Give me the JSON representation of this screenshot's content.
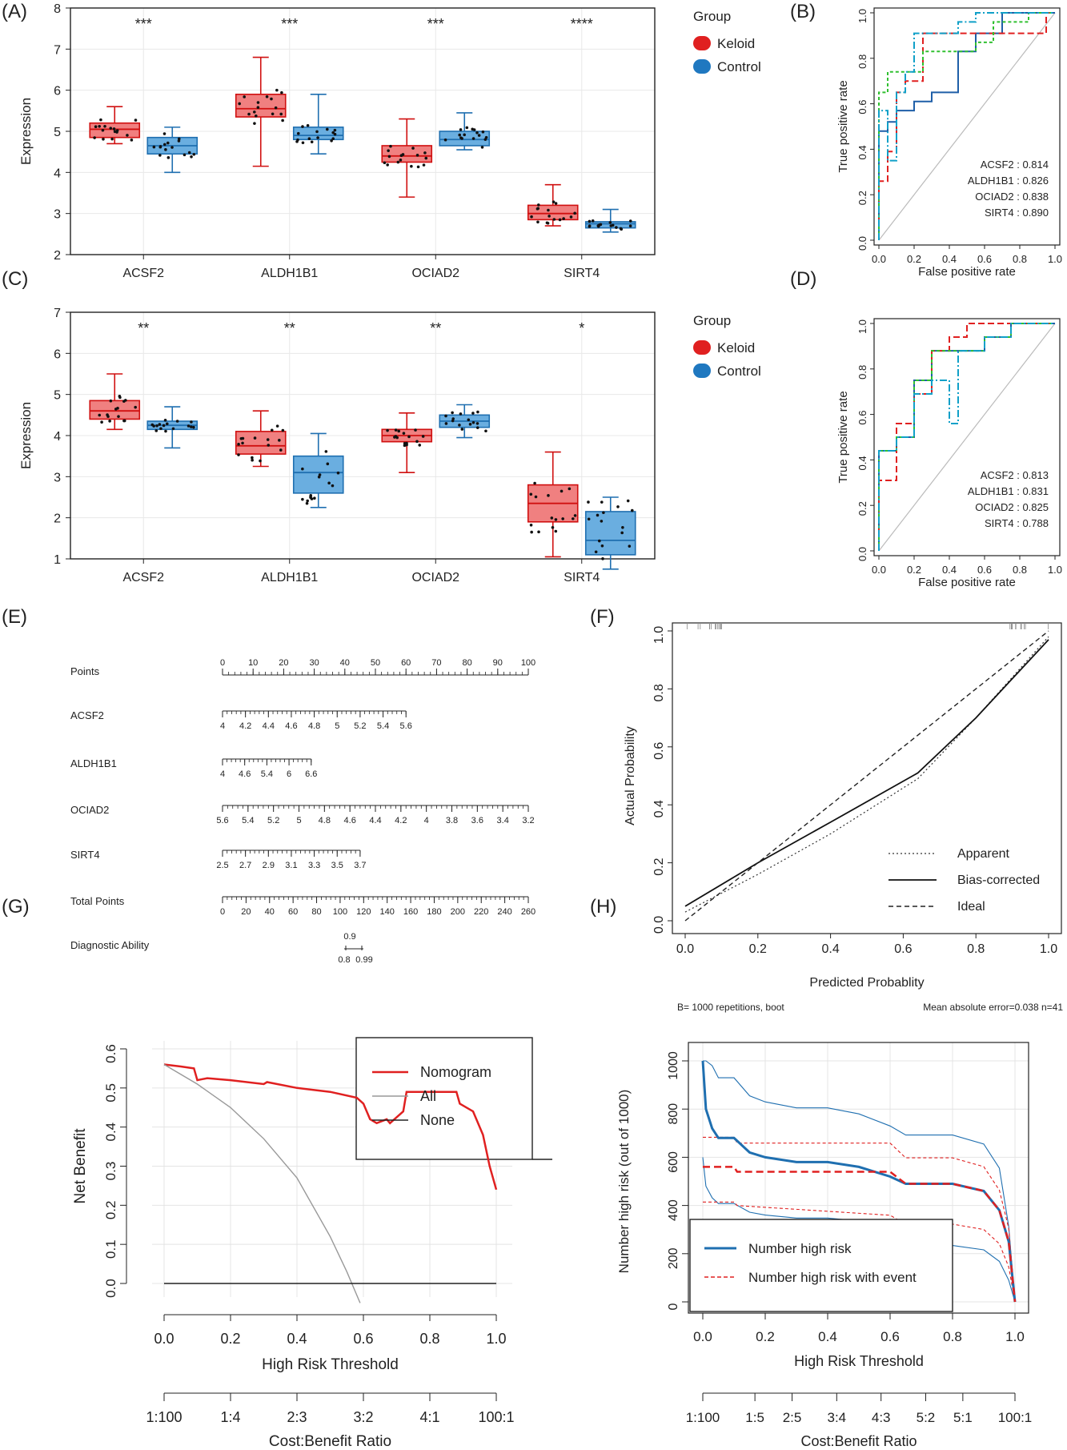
{
  "panel_labels": [
    "(A)",
    "(B)",
    "(C)",
    "(D)",
    "(E)",
    "(F)",
    "(G)",
    "(H)"
  ],
  "colors": {
    "keloid_fill": "#f08080",
    "keloid_line": "#d01010",
    "control_fill": "#6aaee0",
    "control_line": "#1f6fb0",
    "acsf2": "#1f5fa8",
    "aldh1b1": "#e02020",
    "ociad2": "#30c030",
    "sirt4": "#10a0c8"
  },
  "chart_data": [
    {
      "id": "A",
      "type": "box",
      "ylabel": "Expression",
      "ylim": [
        2,
        8
      ],
      "yticks": [
        2,
        3,
        4,
        5,
        6,
        7,
        8
      ],
      "categories": [
        "ACSF2",
        "ALDH1B1",
        "OCIAD2",
        "SIRT4"
      ],
      "significance": [
        "***",
        "***",
        "***",
        "****"
      ],
      "legend": {
        "title": "Group",
        "entries": [
          "Keloid",
          "Control"
        ]
      },
      "boxes": [
        {
          "cat": "ACSF2",
          "group": "Keloid",
          "min": 4.7,
          "q1": 4.85,
          "median": 5.05,
          "q3": 5.2,
          "max": 5.6
        },
        {
          "cat": "ACSF2",
          "group": "Control",
          "min": 4.0,
          "q1": 4.45,
          "median": 4.65,
          "q3": 4.85,
          "max": 5.1
        },
        {
          "cat": "ALDH1B1",
          "group": "Keloid",
          "min": 4.15,
          "q1": 5.35,
          "median": 5.55,
          "q3": 5.9,
          "max": 6.8
        },
        {
          "cat": "ALDH1B1",
          "group": "Control",
          "min": 4.45,
          "q1": 4.8,
          "median": 4.9,
          "q3": 5.1,
          "max": 5.9
        },
        {
          "cat": "OCIAD2",
          "group": "Keloid",
          "min": 3.4,
          "q1": 4.25,
          "median": 4.4,
          "q3": 4.65,
          "max": 5.3
        },
        {
          "cat": "OCIAD2",
          "group": "Control",
          "min": 4.55,
          "q1": 4.65,
          "median": 4.8,
          "q3": 5.0,
          "max": 5.45
        },
        {
          "cat": "SIRT4",
          "group": "Keloid",
          "min": 2.7,
          "q1": 2.85,
          "median": 3.0,
          "q3": 3.2,
          "max": 3.7
        },
        {
          "cat": "SIRT4",
          "group": "Control",
          "min": 2.55,
          "q1": 2.65,
          "median": 2.75,
          "q3": 2.8,
          "max": 3.1
        }
      ]
    },
    {
      "id": "B",
      "type": "roc",
      "xlabel": "False positive rate",
      "ylabel": "True positive rate",
      "series": [
        {
          "name": "ACSF2",
          "auc": "0.814",
          "x": [
            0,
            0,
            0.05,
            0.05,
            0.1,
            0.1,
            0.2,
            0.2,
            0.3,
            0.3,
            0.45,
            0.45,
            0.55,
            0.55,
            0.7,
            0.7,
            0.8,
            1
          ],
          "y": [
            0,
            0.48,
            0.48,
            0.52,
            0.52,
            0.57,
            0.57,
            0.61,
            0.61,
            0.65,
            0.65,
            0.83,
            0.83,
            0.91,
            0.91,
            1,
            1,
            1
          ]
        },
        {
          "name": "ALDH1B1",
          "auc": "0.826",
          "x": [
            0,
            0,
            0.05,
            0.05,
            0.1,
            0.1,
            0.15,
            0.15,
            0.25,
            0.25,
            0.8,
            0.8,
            0.95,
            0.95,
            1
          ],
          "y": [
            0,
            0.26,
            0.26,
            0.39,
            0.39,
            0.65,
            0.65,
            0.7,
            0.7,
            0.91,
            0.91,
            0.91,
            0.91,
            1,
            1
          ]
        },
        {
          "name": "OCIAD2",
          "auc": "0.838",
          "x": [
            0,
            0,
            0.05,
            0.05,
            0.25,
            0.25,
            0.55,
            0.55,
            0.65,
            0.65,
            0.85,
            0.85,
            1
          ],
          "y": [
            0,
            0.65,
            0.65,
            0.74,
            0.74,
            0.83,
            0.83,
            0.87,
            0.87,
            0.96,
            0.96,
            1,
            1
          ]
        },
        {
          "name": "SIRT4",
          "auc": "0.890",
          "x": [
            0,
            0,
            0.05,
            0.05,
            0.1,
            0.1,
            0.15,
            0.15,
            0.2,
            0.2,
            0.3,
            0.3,
            0.45,
            0.45,
            0.55,
            0.55,
            0.8,
            1
          ],
          "y": [
            0,
            0.57,
            0.57,
            0.35,
            0.35,
            0.65,
            0.65,
            0.74,
            0.74,
            0.91,
            0.91,
            0.91,
            0.91,
            0.96,
            0.96,
            1,
            1,
            1
          ]
        }
      ]
    },
    {
      "id": "C",
      "type": "box",
      "ylabel": "Expression",
      "ylim": [
        1,
        7
      ],
      "yticks": [
        1,
        2,
        3,
        4,
        5,
        6,
        7
      ],
      "categories": [
        "ACSF2",
        "ALDH1B1",
        "OCIAD2",
        "SIRT4"
      ],
      "significance": [
        "**",
        "**",
        "**",
        "*"
      ],
      "legend": {
        "title": "Group",
        "entries": [
          "Keloid",
          "Control"
        ]
      },
      "boxes": [
        {
          "cat": "ACSF2",
          "group": "Keloid",
          "min": 4.15,
          "q1": 4.4,
          "median": 4.6,
          "q3": 4.85,
          "max": 5.5
        },
        {
          "cat": "ACSF2",
          "group": "Control",
          "min": 3.7,
          "q1": 4.15,
          "median": 4.25,
          "q3": 4.35,
          "max": 4.7
        },
        {
          "cat": "ALDH1B1",
          "group": "Keloid",
          "min": 3.25,
          "q1": 3.55,
          "median": 3.75,
          "q3": 4.1,
          "max": 4.6
        },
        {
          "cat": "ALDH1B1",
          "group": "Control",
          "min": 2.25,
          "q1": 2.6,
          "median": 3.1,
          "q3": 3.5,
          "max": 4.05
        },
        {
          "cat": "OCIAD2",
          "group": "Keloid",
          "min": 3.1,
          "q1": 3.85,
          "median": 4.0,
          "q3": 4.15,
          "max": 4.55
        },
        {
          "cat": "OCIAD2",
          "group": "Control",
          "min": 3.95,
          "q1": 4.2,
          "median": 4.35,
          "q3": 4.5,
          "max": 4.75
        },
        {
          "cat": "SIRT4",
          "group": "Keloid",
          "min": 1.05,
          "q1": 1.9,
          "median": 2.35,
          "q3": 2.8,
          "max": 3.6
        },
        {
          "cat": "SIRT4",
          "group": "Control",
          "min": 0.75,
          "q1": 1.1,
          "median": 1.45,
          "q3": 2.15,
          "max": 2.5
        }
      ]
    },
    {
      "id": "D",
      "type": "roc",
      "xlabel": "False positive rate",
      "ylabel": "True positive rate",
      "series": [
        {
          "name": "ACSF2",
          "auc": "0.813",
          "x": [
            0,
            0,
            0.1,
            0.1,
            0.2,
            0.2,
            0.3,
            0.3,
            0.6,
            0.6,
            0.75,
            0.75,
            1
          ],
          "y": [
            0,
            0.44,
            0.44,
            0.5,
            0.5,
            0.75,
            0.75,
            0.88,
            0.88,
            0.94,
            0.94,
            1,
            1
          ]
        },
        {
          "name": "ALDH1B1",
          "auc": "0.831",
          "x": [
            0,
            0,
            0.1,
            0.1,
            0.2,
            0.2,
            0.3,
            0.3,
            0.4,
            0.4,
            0.5,
            0.5,
            1
          ],
          "y": [
            0,
            0.31,
            0.31,
            0.56,
            0.56,
            0.69,
            0.69,
            0.88,
            0.88,
            0.94,
            0.94,
            1,
            1
          ]
        },
        {
          "name": "OCIAD2",
          "auc": "0.825",
          "x": [
            0,
            0,
            0.1,
            0.1,
            0.2,
            0.2,
            0.3,
            0.3,
            0.6,
            0.6,
            0.75,
            0.75,
            1
          ],
          "y": [
            0,
            0.44,
            0.44,
            0.5,
            0.5,
            0.75,
            0.75,
            0.88,
            0.88,
            0.94,
            0.94,
            1,
            1
          ]
        },
        {
          "name": "SIRT4",
          "auc": "0.788",
          "x": [
            0,
            0,
            0.1,
            0.1,
            0.2,
            0.2,
            0.3,
            0.3,
            0.4,
            0.4,
            0.45,
            0.45,
            0.6,
            0.6,
            0.75,
            0.75,
            1
          ],
          "y": [
            0,
            0.44,
            0.44,
            0.5,
            0.5,
            0.69,
            0.69,
            0.75,
            0.75,
            0.56,
            0.56,
            0.88,
            0.88,
            0.94,
            0.94,
            1,
            1
          ]
        }
      ]
    },
    {
      "id": "E",
      "type": "nomogram",
      "rows": [
        {
          "label": "Points",
          "ticks": [
            "0",
            "10",
            "20",
            "30",
            "40",
            "50",
            "60",
            "70",
            "80",
            "90",
            "100"
          ],
          "start": 0,
          "end": 100
        },
        {
          "label": "ACSF2",
          "ticks": [
            "4",
            "4.2",
            "4.4",
            "4.6",
            "4.8",
            "5",
            "5.2",
            "5.4",
            "5.6"
          ],
          "start": 0,
          "end": 60
        },
        {
          "label": "ALDH1B1",
          "ticks": [
            "4",
            "4.6",
            "5.4",
            "6",
            "6.6"
          ],
          "start": 0,
          "end": 29
        },
        {
          "label": "OCIAD2",
          "ticks": [
            "5.6",
            "5.4",
            "5.2",
            "5",
            "4.8",
            "4.6",
            "4.4",
            "4.2",
            "4",
            "3.8",
            "3.6",
            "3.4",
            "3.2"
          ],
          "start": 0,
          "end": 100
        },
        {
          "label": "SIRT4",
          "ticks": [
            "2.5",
            "2.7",
            "2.9",
            "3.1",
            "3.3",
            "3.5",
            "3.7"
          ],
          "start": 0,
          "end": 45
        },
        {
          "label": "Total Points",
          "ticks": [
            "0",
            "20",
            "40",
            "60",
            "80",
            "100",
            "120",
            "140",
            "160",
            "180",
            "200",
            "220",
            "240",
            "260"
          ],
          "start": 0,
          "end": 100
        }
      ],
      "diagnostic": {
        "label": "Diagnostic Ability",
        "top": "0.9",
        "bottom_left": "0.8",
        "bottom_right": "0.99"
      }
    },
    {
      "id": "F",
      "type": "line",
      "xlabel": "Predicted Probablity",
      "ylabel": "Actual Probability",
      "xlim": [
        0,
        1
      ],
      "ylim": [
        0,
        1
      ],
      "ticks": [
        "0.0",
        "0.2",
        "0.4",
        "0.6",
        "0.8",
        "1.0"
      ],
      "footer_left": "B= 1000 repetitions, boot",
      "footer_right": "Mean absolute error=0.038 n=41",
      "series": [
        {
          "name": "Apparent",
          "x": [
            0,
            0.2,
            0.4,
            0.64,
            0.8,
            1
          ],
          "y": [
            0.03,
            0.16,
            0.3,
            0.49,
            0.7,
            0.98
          ]
        },
        {
          "name": "Bias-corrected",
          "x": [
            0,
            0.2,
            0.4,
            0.64,
            0.8,
            1
          ],
          "y": [
            0.05,
            0.2,
            0.34,
            0.51,
            0.7,
            0.97
          ]
        },
        {
          "name": "Ideal",
          "x": [
            0,
            1
          ],
          "y": [
            0,
            1
          ]
        }
      ]
    },
    {
      "id": "G",
      "type": "line",
      "xlabel": "High Risk Threshold",
      "ylabel": "Net Benefit",
      "xlim": [
        0,
        1
      ],
      "ylim": [
        0,
        0.6
      ],
      "xticks": [
        "0.0",
        "0.2",
        "0.4",
        "0.6",
        "0.8",
        "1.0"
      ],
      "yticks": [
        "0.0",
        "0.1",
        "0.2",
        "0.3",
        "0.4",
        "0.5",
        "0.6"
      ],
      "ratio_label": "Cost:Benefit Ratio",
      "ratio_ticks": [
        "1:100",
        "1:4",
        "2:3",
        "3:2",
        "4:1",
        "100:1"
      ],
      "series": [
        {
          "name": "Nomogram",
          "x": [
            0,
            0.05,
            0.09,
            0.1,
            0.13,
            0.2,
            0.3,
            0.31,
            0.4,
            0.5,
            0.58,
            0.6,
            0.62,
            0.64,
            0.67,
            0.68,
            0.72,
            0.73,
            0.88,
            0.89,
            0.93,
            0.96,
            0.98,
            1.0
          ],
          "y": [
            0.56,
            0.555,
            0.55,
            0.52,
            0.525,
            0.52,
            0.51,
            0.515,
            0.5,
            0.49,
            0.475,
            0.46,
            0.42,
            0.41,
            0.42,
            0.41,
            0.44,
            0.49,
            0.49,
            0.46,
            0.44,
            0.38,
            0.3,
            0.24
          ]
        },
        {
          "name": "All",
          "x": [
            0,
            0.1,
            0.2,
            0.3,
            0.4,
            0.5,
            0.55,
            0.59
          ],
          "y": [
            0.56,
            0.51,
            0.45,
            0.37,
            0.27,
            0.12,
            0.03,
            -0.05
          ]
        },
        {
          "name": "None",
          "x": [
            0,
            1
          ],
          "y": [
            0,
            0
          ]
        }
      ]
    },
    {
      "id": "H",
      "type": "line",
      "xlabel": "High Risk Threshold",
      "ylabel": "Number high risk (out of 1000)",
      "xlim": [
        0,
        1
      ],
      "ylim": [
        0,
        1000
      ],
      "xticks": [
        "0.0",
        "0.2",
        "0.4",
        "0.6",
        "0.8",
        "1.0"
      ],
      "yticks": [
        "0",
        "200",
        "400",
        "600",
        "800",
        "1000"
      ],
      "ratio_label": "Cost:Benefit Ratio",
      "ratio_ticks": [
        "1:100",
        "1:5",
        "2:5",
        "3:4",
        "4:3",
        "5:2",
        "5:1",
        "100:1"
      ],
      "series": [
        {
          "name": "Number high risk",
          "x": [
            0,
            0.01,
            0.03,
            0.05,
            0.1,
            0.15,
            0.2,
            0.3,
            0.4,
            0.5,
            0.6,
            0.65,
            0.8,
            0.9,
            0.95,
            0.98,
            1.0
          ],
          "y": [
            1000,
            800,
            720,
            680,
            680,
            620,
            600,
            580,
            580,
            560,
            520,
            490,
            490,
            460,
            380,
            250,
            0
          ]
        },
        {
          "name": "Number high risk with event",
          "x": [
            0,
            0.1,
            0.11,
            0.6,
            0.65,
            0.8,
            0.9,
            0.95,
            0.98,
            1.0
          ],
          "y": [
            560,
            560,
            540,
            540,
            490,
            490,
            460,
            380,
            250,
            0
          ]
        }
      ]
    }
  ]
}
